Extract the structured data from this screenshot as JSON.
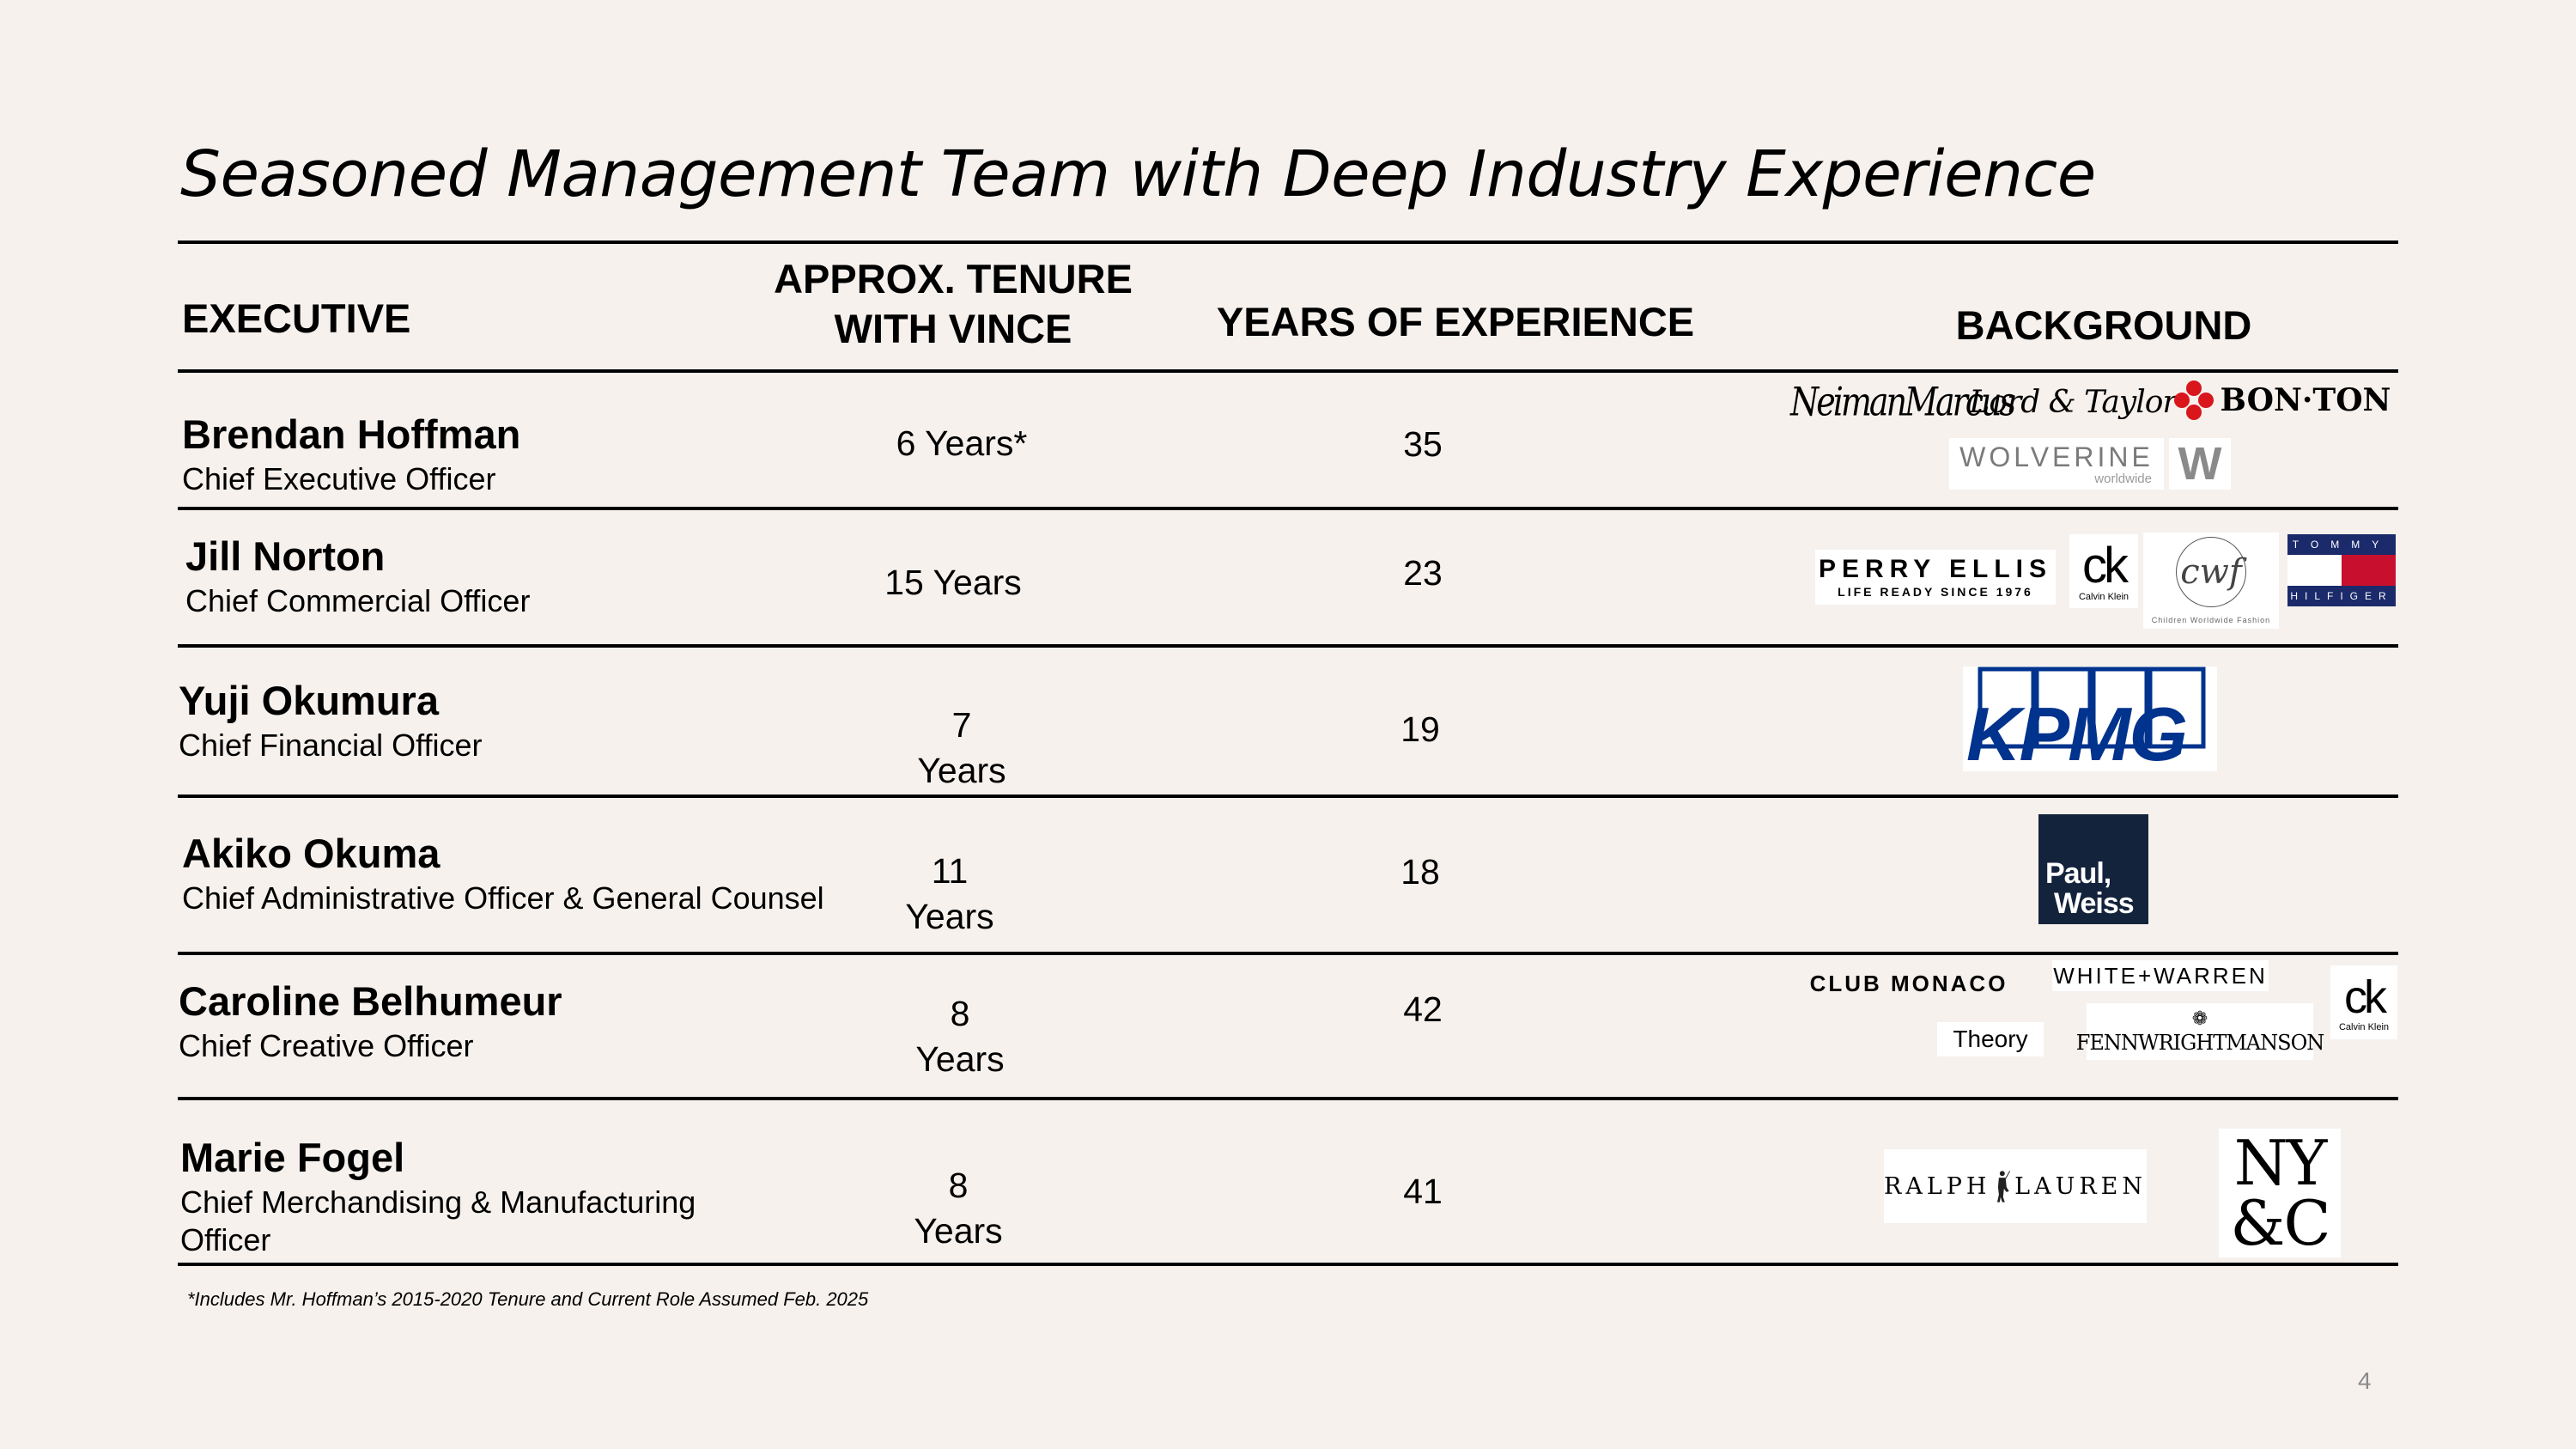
{
  "title": "Seasoned Management Team with Deep Industry Experience",
  "headers": {
    "executive": "EXECUTIVE",
    "tenure_line1": "APPROX. TENURE",
    "tenure_line2": "WITH VINCE",
    "experience": "YEARS OF EXPERIENCE",
    "background": "BACKGROUND"
  },
  "rows": [
    {
      "name": "Brendan Hoffman",
      "role": "Chief Executive Officer",
      "tenure": "6 Years*",
      "experience": "35"
    },
    {
      "name": "Jill Norton",
      "role": "Chief Commercial Officer",
      "tenure": "15 Years",
      "experience": "23"
    },
    {
      "name": "Yuji Okumura",
      "role": "Chief Financial Officer",
      "tenure_num": "7",
      "tenure_unit": "Years",
      "experience": "19"
    },
    {
      "name": "Akiko Okuma",
      "role": "Chief Administrative Officer & General Counsel",
      "tenure_num": "11",
      "tenure_unit": "Years",
      "experience": "18"
    },
    {
      "name": "Caroline Belhumeur",
      "role": "Chief Creative Officer",
      "tenure_num": "8",
      "tenure_unit": "Years",
      "experience": "42"
    },
    {
      "name": "Marie Fogel",
      "role_line1": "Chief Merchandising & Manufacturing",
      "role_line2": "Officer",
      "tenure_num": "8",
      "tenure_unit": "Years",
      "experience": "41"
    }
  ],
  "logos": {
    "neiman": "NeimanMarcus",
    "lord_taylor": "Lord & Taylor",
    "bonton": "BON·TON",
    "wolverine": "WOLVERINE",
    "wolverine_sub": "worldwide",
    "wolverine_mark": "W",
    "perry_ellis": "PERRY ELLIS",
    "perry_ellis_sub": "LIFE READY SINCE 1976",
    "ck": "ck",
    "ck_sub": "Calvin Klein",
    "cwf": "cwf",
    "cwf_sub": "Children Worldwide Fashion",
    "tommy_top": "TOMMY",
    "tommy_bottom": "HILFIGER",
    "kpmg": "KPMG",
    "paul_weiss_1": "Paul,",
    "paul_weiss_2": "Weiss",
    "club_monaco": "CLUB MONACO",
    "white_warren": "WHITE+WARREN",
    "theory": "Theory",
    "fwm_mark": "❁",
    "fenn_wright_manson": "FENNWRIGHTMANSON",
    "ralph_left": "RALPH",
    "ralph_right": "LAUREN",
    "nyc_1": "NY",
    "nyc_2": "&C"
  },
  "footnote": "*Includes Mr. Hoffman’s 2015-2020 Tenure and Current Role Assumed Feb. 2025",
  "page_number": "4"
}
